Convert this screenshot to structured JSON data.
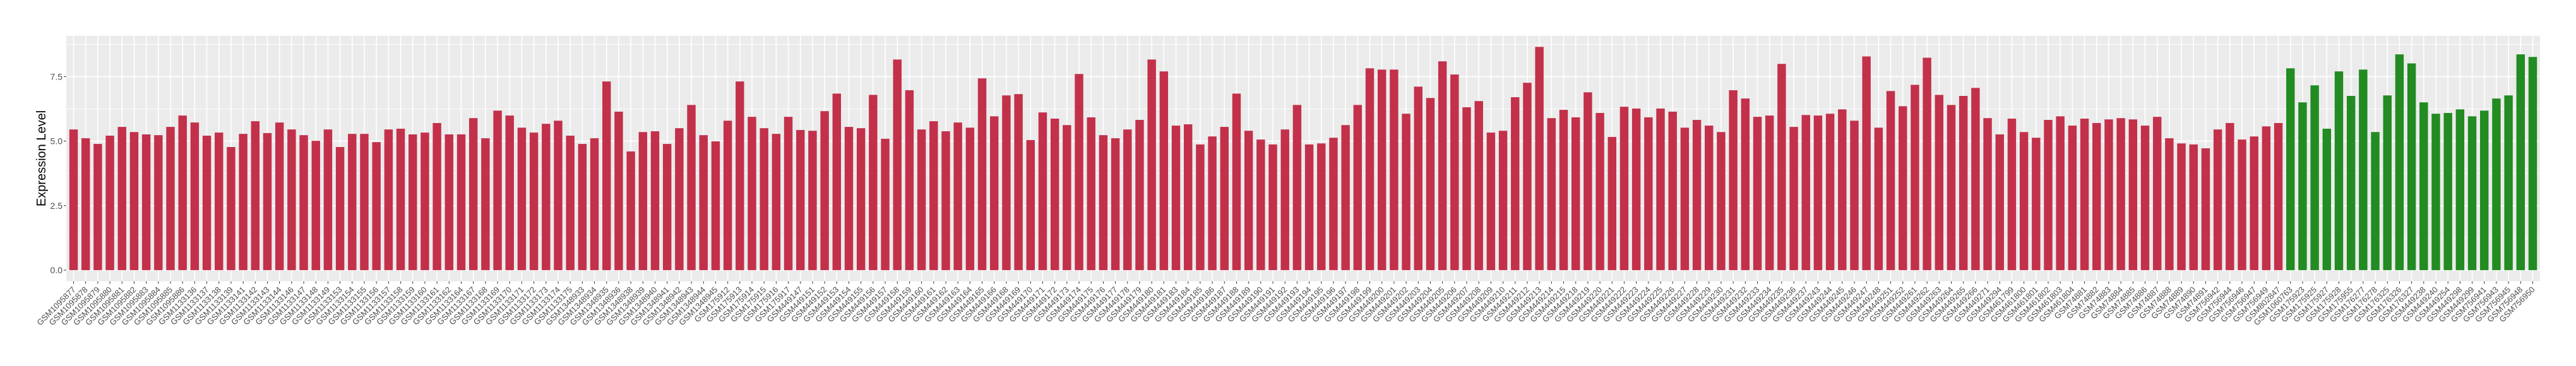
{
  "chart_data": {
    "type": "bar",
    "title": "",
    "xlabel": "",
    "ylabel": "Expression Level",
    "ylim": [
      -0.43,
      9.08
    ],
    "yticks": [
      0,
      2.5,
      5,
      7.5
    ],
    "ytick_labels": [
      "0.0",
      "2.5",
      "5.0",
      "7.5"
    ],
    "grid": true,
    "legend": "none",
    "series": [
      {
        "color": "#C3304A",
        "categories": [
          "GSM1095877",
          "GSM1095878",
          "GSM1095879",
          "GSM1095880",
          "GSM1095881",
          "GSM1095882",
          "GSM1095883",
          "GSM1095884",
          "GSM1095885",
          "GSM1095886",
          "GSM1133136",
          "GSM1133137",
          "GSM1133138",
          "GSM1133139",
          "GSM1133141",
          "GSM1133142",
          "GSM1133143",
          "GSM1133144",
          "GSM1133146",
          "GSM1133147",
          "GSM1133148",
          "GSM1133149",
          "GSM1133153",
          "GSM1133154",
          "GSM1133155",
          "GSM1133156",
          "GSM1133157",
          "GSM1133158",
          "GSM1133159",
          "GSM1133160",
          "GSM1133161",
          "GSM1133162",
          "GSM1133164",
          "GSM1133167",
          "GSM1133168",
          "GSM1133169",
          "GSM1133170",
          "GSM1133171",
          "GSM1133172",
          "GSM1133173",
          "GSM1133174",
          "GSM1133175",
          "GSM1348933",
          "GSM1348934",
          "GSM1348935",
          "GSM1348936",
          "GSM1348938",
          "GSM1348939",
          "GSM1348940",
          "GSM1348941",
          "GSM1348942",
          "GSM1348943",
          "GSM1348944",
          "GSM1348945",
          "GSM175912",
          "GSM175913",
          "GSM175914",
          "GSM175915",
          "GSM175916",
          "GSM175917",
          "GSM449147",
          "GSM449151",
          "GSM449152",
          "GSM449153",
          "GSM449154",
          "GSM449155",
          "GSM449156",
          "GSM449157",
          "GSM449158",
          "GSM449159",
          "GSM449160",
          "GSM449161",
          "GSM449162",
          "GSM449163",
          "GSM449164",
          "GSM449165",
          "GSM449166",
          "GSM449168",
          "GSM449169",
          "GSM449170",
          "GSM449171",
          "GSM449172",
          "GSM449173",
          "GSM449174",
          "GSM449175",
          "GSM449176",
          "GSM449177",
          "GSM449178",
          "GSM449179",
          "GSM449180",
          "GSM449181",
          "GSM449183",
          "GSM449184",
          "GSM449185",
          "GSM449186",
          "GSM449187",
          "GSM449188",
          "GSM449189",
          "GSM449190",
          "GSM449191",
          "GSM449192",
          "GSM449193",
          "GSM449194",
          "GSM449195",
          "GSM449196",
          "GSM449197",
          "GSM449198",
          "GSM449199",
          "GSM449200",
          "GSM449201",
          "GSM449202",
          "GSM449203",
          "GSM449204",
          "GSM449205",
          "GSM449206",
          "GSM449207",
          "GSM449208",
          "GSM449209",
          "GSM449210",
          "GSM449211",
          "GSM449212",
          "GSM449213",
          "GSM449214",
          "GSM449215",
          "GSM449218",
          "GSM449219",
          "GSM449220",
          "GSM449221",
          "GSM449222",
          "GSM449223",
          "GSM449224",
          "GSM449225",
          "GSM449226",
          "GSM449227",
          "GSM449228",
          "GSM449229",
          "GSM449230",
          "GSM449231",
          "GSM449232",
          "GSM449233",
          "GSM449234",
          "GSM449235",
          "GSM449236",
          "GSM449237",
          "GSM449243",
          "GSM449244",
          "GSM449245",
          "GSM449246",
          "GSM449247",
          "GSM449248",
          "GSM449251",
          "GSM449252",
          "GSM449261",
          "GSM449262",
          "GSM449263",
          "GSM449264",
          "GSM449265",
          "GSM449266",
          "GSM449271",
          "GSM449294",
          "GSM461799",
          "GSM461800",
          "GSM461801",
          "GSM461802",
          "GSM461803",
          "GSM461804",
          "GSM74881",
          "GSM74882",
          "GSM74883",
          "GSM74884",
          "GSM74885",
          "GSM74886",
          "GSM74887",
          "GSM74888",
          "GSM74889",
          "GSM74890",
          "GSM74891",
          "GSM756942",
          "GSM756944",
          "GSM756946",
          "GSM756947",
          "GSM756949",
          "GSM802847"
        ],
        "values": [
          5.45,
          5.11,
          4.89,
          5.21,
          5.55,
          5.35,
          5.26,
          5.23,
          5.55,
          5.99,
          5.72,
          5.21,
          5.33,
          4.77,
          5.28,
          5.77,
          5.31,
          5.72,
          5.45,
          5.23,
          5.01,
          5.45,
          4.77,
          5.28,
          5.28,
          4.96,
          5.45,
          5.48,
          5.26,
          5.33,
          5.7,
          5.26,
          5.26,
          5.89,
          5.11,
          6.18,
          5.99,
          5.52,
          5.33,
          5.67,
          5.79,
          5.21,
          4.89,
          5.11,
          7.31,
          6.14,
          4.6,
          5.35,
          5.38,
          4.89,
          5.5,
          6.4,
          5.23,
          4.99,
          5.79,
          7.31,
          5.94,
          5.5,
          5.28,
          5.94,
          5.43,
          5.4,
          6.16,
          6.84,
          5.55,
          5.5,
          6.79,
          5.09,
          8.16,
          6.97,
          5.45,
          5.77,
          5.38,
          5.72,
          5.52,
          7.43,
          5.96,
          6.77,
          6.82,
          5.04,
          6.11,
          5.87,
          5.62,
          7.6,
          5.92,
          5.23,
          5.11,
          5.45,
          5.82,
          8.16,
          7.7,
          5.6,
          5.65,
          4.87,
          5.18,
          5.55,
          6.84,
          5.4,
          5.06,
          4.87,
          5.45,
          6.4,
          4.87,
          4.91,
          5.13,
          5.62,
          6.4,
          7.82,
          7.77,
          7.77,
          6.06,
          7.11,
          6.67,
          8.09,
          7.58,
          6.31,
          6.55,
          5.33,
          5.4,
          6.7,
          7.26,
          8.65,
          5.89,
          6.21,
          5.92,
          6.89,
          6.09,
          5.16,
          6.33,
          6.26,
          5.92,
          6.26,
          6.14,
          5.52,
          5.82,
          5.6,
          5.35,
          6.97,
          6.65,
          5.94,
          5.99,
          7.99,
          5.55,
          6.01,
          5.99,
          6.06,
          6.23,
          5.79,
          8.28,
          5.52,
          6.94,
          6.35,
          7.18,
          8.23,
          6.79,
          6.4,
          6.75,
          7.06,
          5.89,
          5.26,
          5.87,
          5.35,
          5.13,
          5.82,
          5.96,
          5.6,
          5.87,
          5.7,
          5.84,
          5.89,
          5.84,
          5.6,
          5.94,
          5.11,
          4.91,
          4.87,
          4.72,
          5.45,
          5.7,
          5.06,
          5.18,
          5.57,
          5.7
        ]
      },
      {
        "color": "#228B22",
        "categories": [
          "GSM1060763",
          "GSM175923",
          "GSM175925",
          "GSM175927",
          "GSM175928",
          "GSM175955",
          "GSM176277",
          "GSM176278",
          "GSM176325",
          "GSM176326",
          "GSM176327",
          "GSM449238",
          "GSM449240",
          "GSM449254",
          "GSM449298",
          "GSM449299",
          "GSM756941",
          "GSM756943",
          "GSM756945",
          "GSM756948",
          "GSM756950"
        ],
        "values": [
          7.82,
          6.5,
          7.16,
          5.48,
          7.7,
          6.75,
          7.77,
          5.35,
          6.77,
          8.36,
          8.01,
          6.5,
          6.06,
          6.09,
          6.23,
          5.96,
          6.18,
          6.65,
          6.77,
          8.36,
          8.26
        ]
      }
    ],
    "colors": {
      "panel_background": "#EBEBEB",
      "grid": "#FFFFFF"
    }
  }
}
